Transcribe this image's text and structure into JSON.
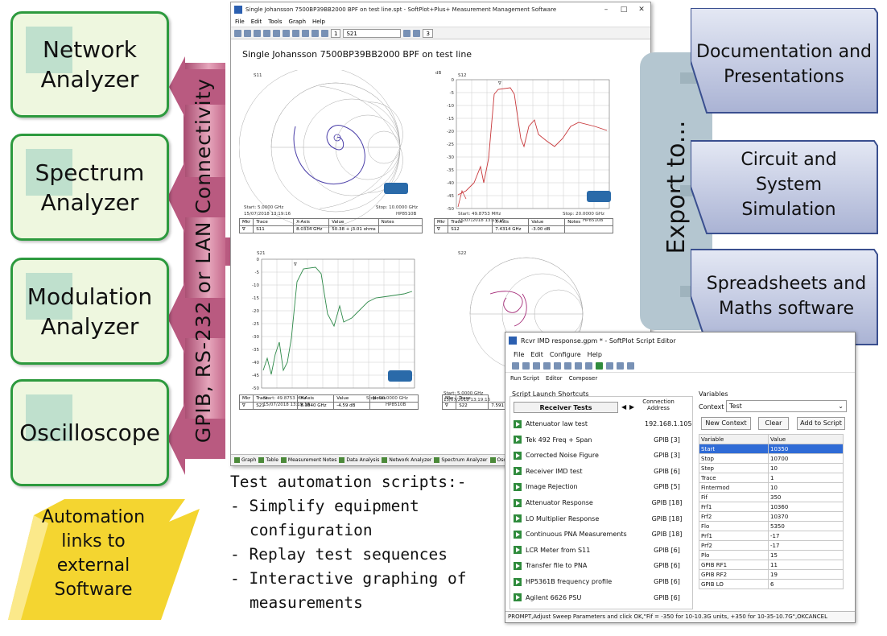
{
  "instruments": [
    {
      "label": "Network Analyzer"
    },
    {
      "label": "Spectrum Analyzer"
    },
    {
      "label": "Modulation Analyzer"
    },
    {
      "label": "Oscilloscope"
    }
  ],
  "connectivity_label": "GPIB, RS-232 or LAN Connectivity",
  "automation_links": "Automation links to external Software",
  "softplot": {
    "title": "Single Johansson 7500BP39BB2000 BPF on test line.spt - SoftPlot+Plus+ Measurement Management Software",
    "menu": [
      "File",
      "Edit",
      "Tools",
      "Graph",
      "Help"
    ],
    "trace_select": "S21",
    "trace_index": "1",
    "cols": "3",
    "plot_title": "Single Johansson 7500BP39BB2000 BPF on test line",
    "plots": {
      "s11": {
        "label": "S11",
        "start": "Start: 5.0000 GHz",
        "stop": "Stop: 10.0000 GHz",
        "date": "15/07/2018 13:19:16",
        "instr": "HP8510B",
        "table_headers": [
          "Mkr",
          "Trace",
          "X-Axis",
          "Value",
          "Notes"
        ],
        "row": [
          "∇",
          "S11",
          "8.0334 GHz",
          "50.38 + j3.01 ohms",
          ""
        ]
      },
      "s12": {
        "label": "S12",
        "unit": "dB",
        "start": "Start: 49.8753 MHz",
        "stop": "Stop: 20.0000 GHz",
        "date": "15/07/2018 13:19:16",
        "instr": "HP8510B",
        "ticks": [
          "0",
          "-5",
          "-10",
          "-15",
          "-20",
          "-25",
          "-30",
          "-35",
          "-40",
          "-45",
          "-50"
        ],
        "table_headers": [
          "Mkr",
          "Trace",
          "X-Axis",
          "Value",
          "Notes"
        ],
        "row": [
          "∇",
          "S12",
          "7.4314 GHz",
          "-3.00 dB",
          ""
        ]
      },
      "s21": {
        "label": "S21",
        "start": "Start: 49.8753 MHz",
        "stop": "Stop: 20.0000 GHz",
        "date": "15/07/2018 13:19:16",
        "instr": "HP8510B",
        "ticks": [
          "0",
          "-5",
          "-10",
          "-15",
          "-20",
          "-25",
          "-30",
          "-35",
          "-40",
          "-45",
          "-50"
        ],
        "table_headers": [
          "Mkr",
          "Trace",
          "X-Axis",
          "Value",
          "Notes"
        ],
        "row": [
          "∇",
          "S21",
          "8.3840 GHz",
          "-4.59 dB",
          ""
        ]
      },
      "s22": {
        "label": "S22",
        "start": "Start: 5.0000 GHz",
        "date": "15/07/2018 13:19:16",
        "table_headers": [
          "Mkr",
          "Trace"
        ],
        "row": [
          "∇",
          "S22",
          "7.591"
        ]
      }
    },
    "tabs": [
      "Graph",
      "Table",
      "Measurement Notes",
      "Data Analysis",
      "Network Analyzer",
      "Spectrum Analyzer",
      "Osc"
    ]
  },
  "export": {
    "label": "Export to...",
    "targets": [
      "Documentation and Presentations",
      "Circuit and System Simulation",
      "Spreadsheets and Maths software"
    ]
  },
  "automation_text": {
    "heading": "Test automation scripts:-",
    "items": [
      "- Simplify equipment",
      "  configuration",
      "- Replay test sequences",
      "- Interactive graphing of",
      "  measurements"
    ]
  },
  "script_editor": {
    "title": "Rcvr IMD response.gpm * - SoftPlot Script Editor",
    "menu": [
      "File",
      "Edit",
      "Configure",
      "Help"
    ],
    "tabs": [
      "Run Script",
      "Editor",
      "Composer"
    ],
    "shortcuts_title": "Script Launch Shortcuts",
    "group": "Receiver Tests",
    "connection_header": "Connection Address",
    "scripts": [
      {
        "name": "Attenuator law test",
        "addr": "192.168.1.105"
      },
      {
        "name": "Tek 492 Freq + Span",
        "addr": "GPIB [3]"
      },
      {
        "name": "Corrected Noise Figure",
        "addr": "GPIB [3]"
      },
      {
        "name": "Receiver IMD test",
        "addr": "GPIB [6]"
      },
      {
        "name": "Image Rejection",
        "addr": "GPIB [5]"
      },
      {
        "name": "Attenuator Response",
        "addr": "GPIB [18]"
      },
      {
        "name": "LO Multiplier Response",
        "addr": "GPIB [18]"
      },
      {
        "name": "Continuous PNA Measurements",
        "addr": "GPIB [18]"
      },
      {
        "name": "LCR Meter from S11",
        "addr": "GPIB [6]"
      },
      {
        "name": "Transfer file to PNA",
        "addr": "GPIB [6]"
      },
      {
        "name": "HP5361B frequency profile",
        "addr": "GPIB [6]"
      },
      {
        "name": "Agilent 6626 PSU",
        "addr": "GPIB [6]"
      }
    ],
    "variables_title": "Variables",
    "context_label": "Context",
    "context_value": "Test",
    "buttons": [
      "New Context",
      "Clear",
      "Add to Script"
    ],
    "var_headers": [
      "Variable",
      "Value"
    ],
    "variables": [
      [
        "Start",
        "10350"
      ],
      [
        "Stop",
        "10700"
      ],
      [
        "Step",
        "10"
      ],
      [
        "Trace",
        "1"
      ],
      [
        "Fintermod",
        "10"
      ],
      [
        "Fif",
        "350"
      ],
      [
        "Frf1",
        "10360"
      ],
      [
        "Frf2",
        "10370"
      ],
      [
        "Flo",
        "5350"
      ],
      [
        "Prf1",
        "-17"
      ],
      [
        "Prf2",
        "-17"
      ],
      [
        "Plo",
        "15"
      ],
      [
        "GPIB RF1",
        "11"
      ],
      [
        "GPIB RF2",
        "19"
      ],
      [
        "GPIB LO",
        "6"
      ]
    ],
    "status": "PROMPT,Adjust Sweep Parameters and click OK,\"Fif = -350 for 10-10.3G units, +350 for 10-35-10.7G\",OKCANCEL"
  },
  "colors": {
    "green_border": "#2d9a3e",
    "pink_arrow": "#c9708f",
    "blue_box": "#c3cbe2",
    "grey_export": "#b4c6d0",
    "yellow_burst": "#f4d530"
  }
}
